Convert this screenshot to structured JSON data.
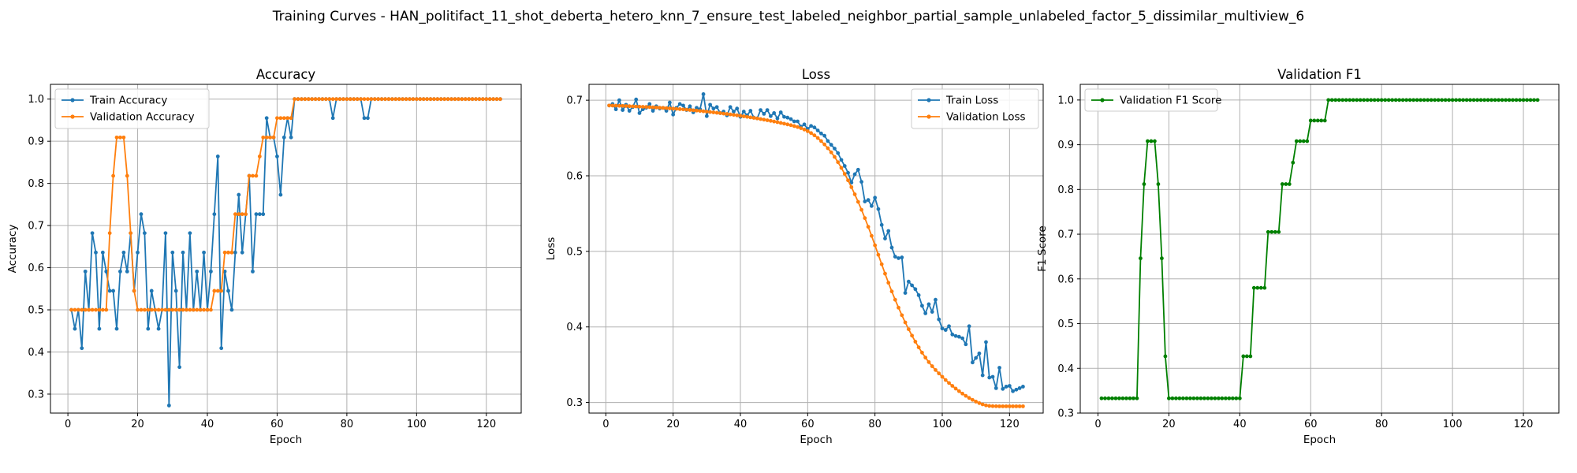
{
  "figure": {
    "suptitle": "Training Curves - HAN_politifact_11_shot_deberta_hetero_knn_7_ensure_test_labeled_neighbor_partial_sample_unlabeled_factor_5_dissimilar_multiview_6"
  },
  "chart_data": [
    {
      "type": "line",
      "title": "Accuracy",
      "xlabel": "Epoch",
      "ylabel": "Accuracy",
      "xlim": [
        -5,
        130
      ],
      "ylim": [
        0.255,
        1.035
      ],
      "xticks": [
        0,
        20,
        40,
        60,
        80,
        100,
        120
      ],
      "yticks": [
        0.3,
        0.4,
        0.5,
        0.6,
        0.7,
        0.8,
        0.9,
        1.0
      ],
      "ytick_labels": [
        "0.3",
        "0.4",
        "0.5",
        "0.6",
        "0.7",
        "0.8",
        "0.9",
        "1.0"
      ],
      "grid": true,
      "legend_position": "upper-left",
      "series": [
        {
          "name": "Train Accuracy",
          "color": "#1f77b4",
          "x_start": 1,
          "values": [
            0.5,
            0.455,
            0.5,
            0.409,
            0.591,
            0.5,
            0.682,
            0.636,
            0.455,
            0.636,
            0.591,
            0.545,
            0.545,
            0.455,
            0.591,
            0.636,
            0.591,
            0.682,
            0.545,
            0.636,
            0.727,
            0.682,
            0.455,
            0.545,
            0.5,
            0.455,
            0.5,
            0.682,
            0.273,
            0.636,
            0.545,
            0.364,
            0.636,
            0.5,
            0.682,
            0.5,
            0.591,
            0.5,
            0.636,
            0.5,
            0.591,
            0.727,
            0.864,
            0.409,
            0.591,
            0.545,
            0.5,
            0.636,
            0.773,
            0.636,
            0.727,
            0.818,
            0.591,
            0.727,
            0.727,
            0.727,
            0.955,
            0.909,
            0.909,
            0.864,
            0.773,
            0.909,
            0.955,
            0.909,
            1.0,
            1.0,
            1.0,
            1.0,
            1.0,
            1.0,
            1.0,
            1.0,
            1.0,
            1.0,
            1.0,
            0.955,
            1.0,
            1.0,
            1.0,
            1.0,
            1.0,
            1.0,
            1.0,
            1.0,
            0.955,
            0.955,
            1.0,
            1.0,
            1.0,
            1.0,
            1.0,
            1.0,
            1.0,
            1.0,
            1.0,
            1.0,
            1.0,
            1.0,
            1.0,
            1.0,
            1.0,
            1.0,
            1.0,
            1.0,
            1.0,
            1.0,
            1.0,
            1.0,
            1.0,
            1.0,
            1.0,
            1.0,
            1.0,
            1.0,
            1.0,
            1.0,
            1.0,
            1.0,
            1.0,
            1.0,
            1.0,
            1.0,
            1.0,
            1.0
          ]
        },
        {
          "name": "Validation Accuracy",
          "color": "#ff7f0e",
          "x_start": 1,
          "values": [
            0.5,
            0.5,
            0.5,
            0.5,
            0.5,
            0.5,
            0.5,
            0.5,
            0.5,
            0.5,
            0.5,
            0.682,
            0.818,
            0.909,
            0.909,
            0.909,
            0.818,
            0.682,
            0.545,
            0.5,
            0.5,
            0.5,
            0.5,
            0.5,
            0.5,
            0.5,
            0.5,
            0.5,
            0.5,
            0.5,
            0.5,
            0.5,
            0.5,
            0.5,
            0.5,
            0.5,
            0.5,
            0.5,
            0.5,
            0.5,
            0.5,
            0.545,
            0.545,
            0.545,
            0.636,
            0.636,
            0.636,
            0.727,
            0.727,
            0.727,
            0.727,
            0.818,
            0.818,
            0.818,
            0.864,
            0.909,
            0.909,
            0.909,
            0.909,
            0.955,
            0.955,
            0.955,
            0.955,
            0.955,
            1.0,
            1.0,
            1.0,
            1.0,
            1.0,
            1.0,
            1.0,
            1.0,
            1.0,
            1.0,
            1.0,
            1.0,
            1.0,
            1.0,
            1.0,
            1.0,
            1.0,
            1.0,
            1.0,
            1.0,
            1.0,
            1.0,
            1.0,
            1.0,
            1.0,
            1.0,
            1.0,
            1.0,
            1.0,
            1.0,
            1.0,
            1.0,
            1.0,
            1.0,
            1.0,
            1.0,
            1.0,
            1.0,
            1.0,
            1.0,
            1.0,
            1.0,
            1.0,
            1.0,
            1.0,
            1.0,
            1.0,
            1.0,
            1.0,
            1.0,
            1.0,
            1.0,
            1.0,
            1.0,
            1.0,
            1.0,
            1.0,
            1.0,
            1.0,
            1.0
          ]
        }
      ]
    },
    {
      "type": "line",
      "title": "Loss",
      "xlabel": "Epoch",
      "ylabel": "Loss",
      "xlim": [
        -5,
        130
      ],
      "ylim": [
        0.286,
        0.721
      ],
      "xticks": [
        0,
        20,
        40,
        60,
        80,
        100,
        120
      ],
      "yticks": [
        0.3,
        0.4,
        0.5,
        0.6,
        0.7
      ],
      "ytick_labels": [
        "0.3",
        "0.4",
        "0.5",
        "0.6",
        "0.7"
      ],
      "grid": true,
      "legend_position": "upper-right",
      "series": [
        {
          "name": "Train Loss",
          "color": "#1f77b4",
          "x_start": 1,
          "values": [
            0.693,
            0.695,
            0.688,
            0.7,
            0.687,
            0.694,
            0.686,
            0.691,
            0.701,
            0.683,
            0.688,
            0.69,
            0.695,
            0.686,
            0.692,
            0.689,
            0.69,
            0.686,
            0.697,
            0.681,
            0.69,
            0.695,
            0.693,
            0.687,
            0.692,
            0.684,
            0.69,
            0.688,
            0.708,
            0.679,
            0.694,
            0.689,
            0.691,
            0.683,
            0.685,
            0.68,
            0.691,
            0.685,
            0.689,
            0.678,
            0.685,
            0.68,
            0.686,
            0.677,
            0.676,
            0.687,
            0.682,
            0.687,
            0.679,
            0.683,
            0.676,
            0.684,
            0.678,
            0.677,
            0.675,
            0.672,
            0.672,
            0.665,
            0.668,
            0.662,
            0.666,
            0.664,
            0.66,
            0.656,
            0.653,
            0.646,
            0.641,
            0.636,
            0.63,
            0.621,
            0.613,
            0.604,
            0.591,
            0.602,
            0.608,
            0.592,
            0.566,
            0.568,
            0.56,
            0.571,
            0.556,
            0.535,
            0.517,
            0.527,
            0.505,
            0.493,
            0.491,
            0.492,
            0.445,
            0.46,
            0.455,
            0.45,
            0.442,
            0.428,
            0.418,
            0.43,
            0.42,
            0.436,
            0.41,
            0.398,
            0.396,
            0.401,
            0.39,
            0.388,
            0.387,
            0.385,
            0.377,
            0.401,
            0.353,
            0.359,
            0.365,
            0.336,
            0.38,
            0.333,
            0.334,
            0.319,
            0.346,
            0.318,
            0.321,
            0.322,
            0.315,
            0.317,
            0.319,
            0.321
          ]
        },
        {
          "name": "Validation Loss",
          "color": "#ff7f0e",
          "x_start": 1,
          "values": [
            0.693,
            0.6929,
            0.6928,
            0.6926,
            0.6925,
            0.6923,
            0.6921,
            0.6919,
            0.6917,
            0.6915,
            0.6913,
            0.6911,
            0.6909,
            0.6906,
            0.6904,
            0.6901,
            0.6898,
            0.6895,
            0.6892,
            0.6889,
            0.6886,
            0.6882,
            0.6879,
            0.6875,
            0.6871,
            0.6867,
            0.6863,
            0.6858,
            0.6854,
            0.6849,
            0.6844,
            0.6839,
            0.6834,
            0.6829,
            0.6823,
            0.6818,
            0.6812,
            0.6806,
            0.68,
            0.6794,
            0.6787,
            0.678,
            0.6773,
            0.6766,
            0.6759,
            0.6751,
            0.6743,
            0.6735,
            0.6727,
            0.6718,
            0.671,
            0.67,
            0.669,
            0.668,
            0.667,
            0.6658,
            0.6645,
            0.663,
            0.6612,
            0.659,
            0.6565,
            0.6535,
            0.65,
            0.646,
            0.6415,
            0.6365,
            0.631,
            0.625,
            0.618,
            0.6105,
            0.6025,
            0.594,
            0.585,
            0.5755,
            0.5655,
            0.555,
            0.544,
            0.5325,
            0.5205,
            0.508,
            0.4955,
            0.483,
            0.4705,
            0.4585,
            0.447,
            0.436,
            0.4255,
            0.4155,
            0.406,
            0.397,
            0.3885,
            0.3805,
            0.373,
            0.366,
            0.3595,
            0.3535,
            0.348,
            0.343,
            0.3385,
            0.334,
            0.3298,
            0.3258,
            0.322,
            0.3184,
            0.315,
            0.3118,
            0.3088,
            0.306,
            0.3035,
            0.3012,
            0.2992,
            0.2975,
            0.2962,
            0.2955,
            0.2952,
            0.2951,
            0.295,
            0.295,
            0.295,
            0.295,
            0.295,
            0.295,
            0.295,
            0.295
          ]
        }
      ]
    },
    {
      "type": "line",
      "title": "Validation F1",
      "xlabel": "Epoch",
      "ylabel": "F1 Score",
      "xlim": [
        -5,
        130
      ],
      "ylim": [
        0.3,
        1.035
      ],
      "xticks": [
        0,
        20,
        40,
        60,
        80,
        100,
        120
      ],
      "yticks": [
        0.3,
        0.4,
        0.5,
        0.6,
        0.7,
        0.8,
        0.9,
        1.0
      ],
      "ytick_labels": [
        "0.3",
        "0.4",
        "0.5",
        "0.6",
        "0.7",
        "0.8",
        "0.9",
        "1.0"
      ],
      "grid": true,
      "legend_position": "upper-left",
      "series": [
        {
          "name": "Validation F1 Score",
          "color": "#008000",
          "x_start": 1,
          "values": [
            0.333,
            0.333,
            0.333,
            0.333,
            0.333,
            0.333,
            0.333,
            0.333,
            0.333,
            0.333,
            0.333,
            0.646,
            0.812,
            0.908,
            0.908,
            0.908,
            0.812,
            0.646,
            0.427,
            0.333,
            0.333,
            0.333,
            0.333,
            0.333,
            0.333,
            0.333,
            0.333,
            0.333,
            0.333,
            0.333,
            0.333,
            0.333,
            0.333,
            0.333,
            0.333,
            0.333,
            0.333,
            0.333,
            0.333,
            0.333,
            0.427,
            0.427,
            0.427,
            0.58,
            0.58,
            0.58,
            0.58,
            0.705,
            0.705,
            0.705,
            0.705,
            0.812,
            0.812,
            0.812,
            0.86,
            0.908,
            0.908,
            0.908,
            0.908,
            0.954,
            0.954,
            0.954,
            0.954,
            0.954,
            1.0,
            1.0,
            1.0,
            1.0,
            1.0,
            1.0,
            1.0,
            1.0,
            1.0,
            1.0,
            1.0,
            1.0,
            1.0,
            1.0,
            1.0,
            1.0,
            1.0,
            1.0,
            1.0,
            1.0,
            1.0,
            1.0,
            1.0,
            1.0,
            1.0,
            1.0,
            1.0,
            1.0,
            1.0,
            1.0,
            1.0,
            1.0,
            1.0,
            1.0,
            1.0,
            1.0,
            1.0,
            1.0,
            1.0,
            1.0,
            1.0,
            1.0,
            1.0,
            1.0,
            1.0,
            1.0,
            1.0,
            1.0,
            1.0,
            1.0,
            1.0,
            1.0,
            1.0,
            1.0,
            1.0,
            1.0,
            1.0,
            1.0,
            1.0,
            1.0
          ]
        }
      ]
    }
  ]
}
